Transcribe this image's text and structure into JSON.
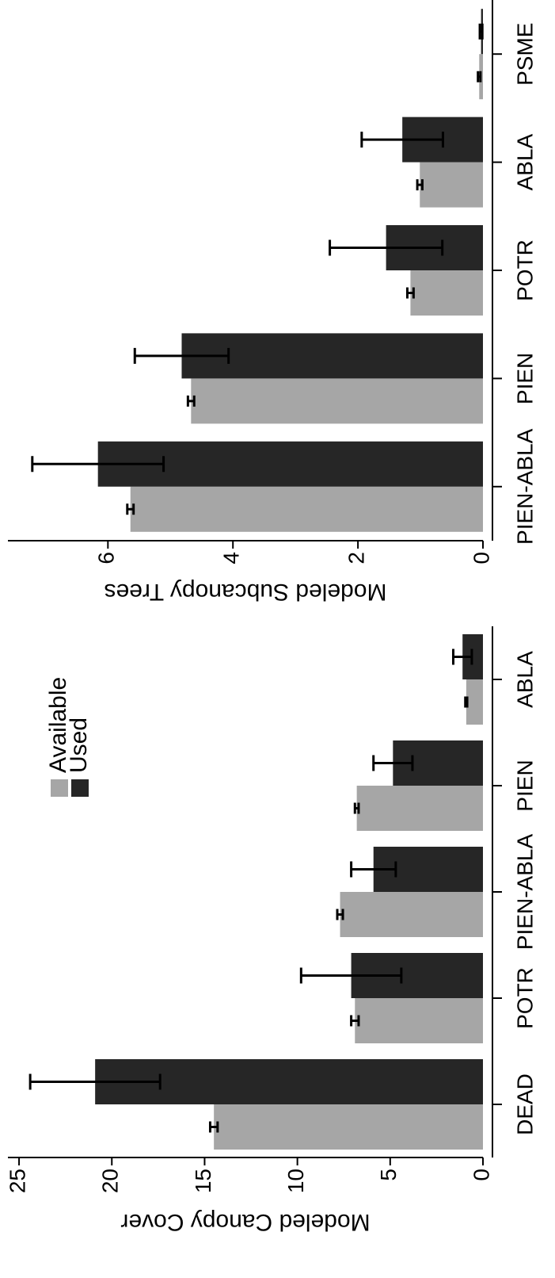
{
  "chart_data": [
    {
      "type": "bar",
      "ylabel": "Modeled Canopy Cover",
      "categories": [
        "DEAD",
        "POTR",
        "PIEN-ABLA",
        "PIEN",
        "ABLA"
      ],
      "series": [
        {
          "name": "Available",
          "color": "#a6a6a6",
          "values": [
            14.5,
            6.9,
            7.7,
            6.8,
            0.9
          ],
          "errors": [
            0.2,
            0.2,
            0.15,
            0.1,
            0.05
          ]
        },
        {
          "name": "Used",
          "color": "#262626",
          "values": [
            20.9,
            7.1,
            5.9,
            4.85,
            1.1
          ],
          "errors": [
            3.5,
            2.7,
            1.2,
            1.05,
            0.5
          ]
        }
      ],
      "ylim": [
        0,
        25.6
      ],
      "yticks": [
        0,
        5,
        10,
        15,
        20,
        25
      ],
      "legend": "upper right"
    },
    {
      "type": "bar",
      "ylabel": "Modeled Subcanopy Trees",
      "categories": [
        "PIEN-ABLA",
        "PIEN",
        "POTR",
        "ABLA",
        "PSME"
      ],
      "series": [
        {
          "color": "#a6a6a6",
          "values": [
            5.64,
            4.67,
            1.16,
            1.01,
            0.06
          ],
          "errors": [
            0.05,
            0.05,
            0.05,
            0.04,
            0.02
          ]
        },
        {
          "color": "#262626",
          "values": [
            6.16,
            4.82,
            1.55,
            1.29,
            0.03
          ],
          "errors": [
            1.05,
            0.75,
            0.9,
            0.65,
            0.02
          ]
        }
      ],
      "ylim": [
        0,
        7.6
      ],
      "yticks": [
        0,
        2,
        4,
        6
      ]
    }
  ]
}
